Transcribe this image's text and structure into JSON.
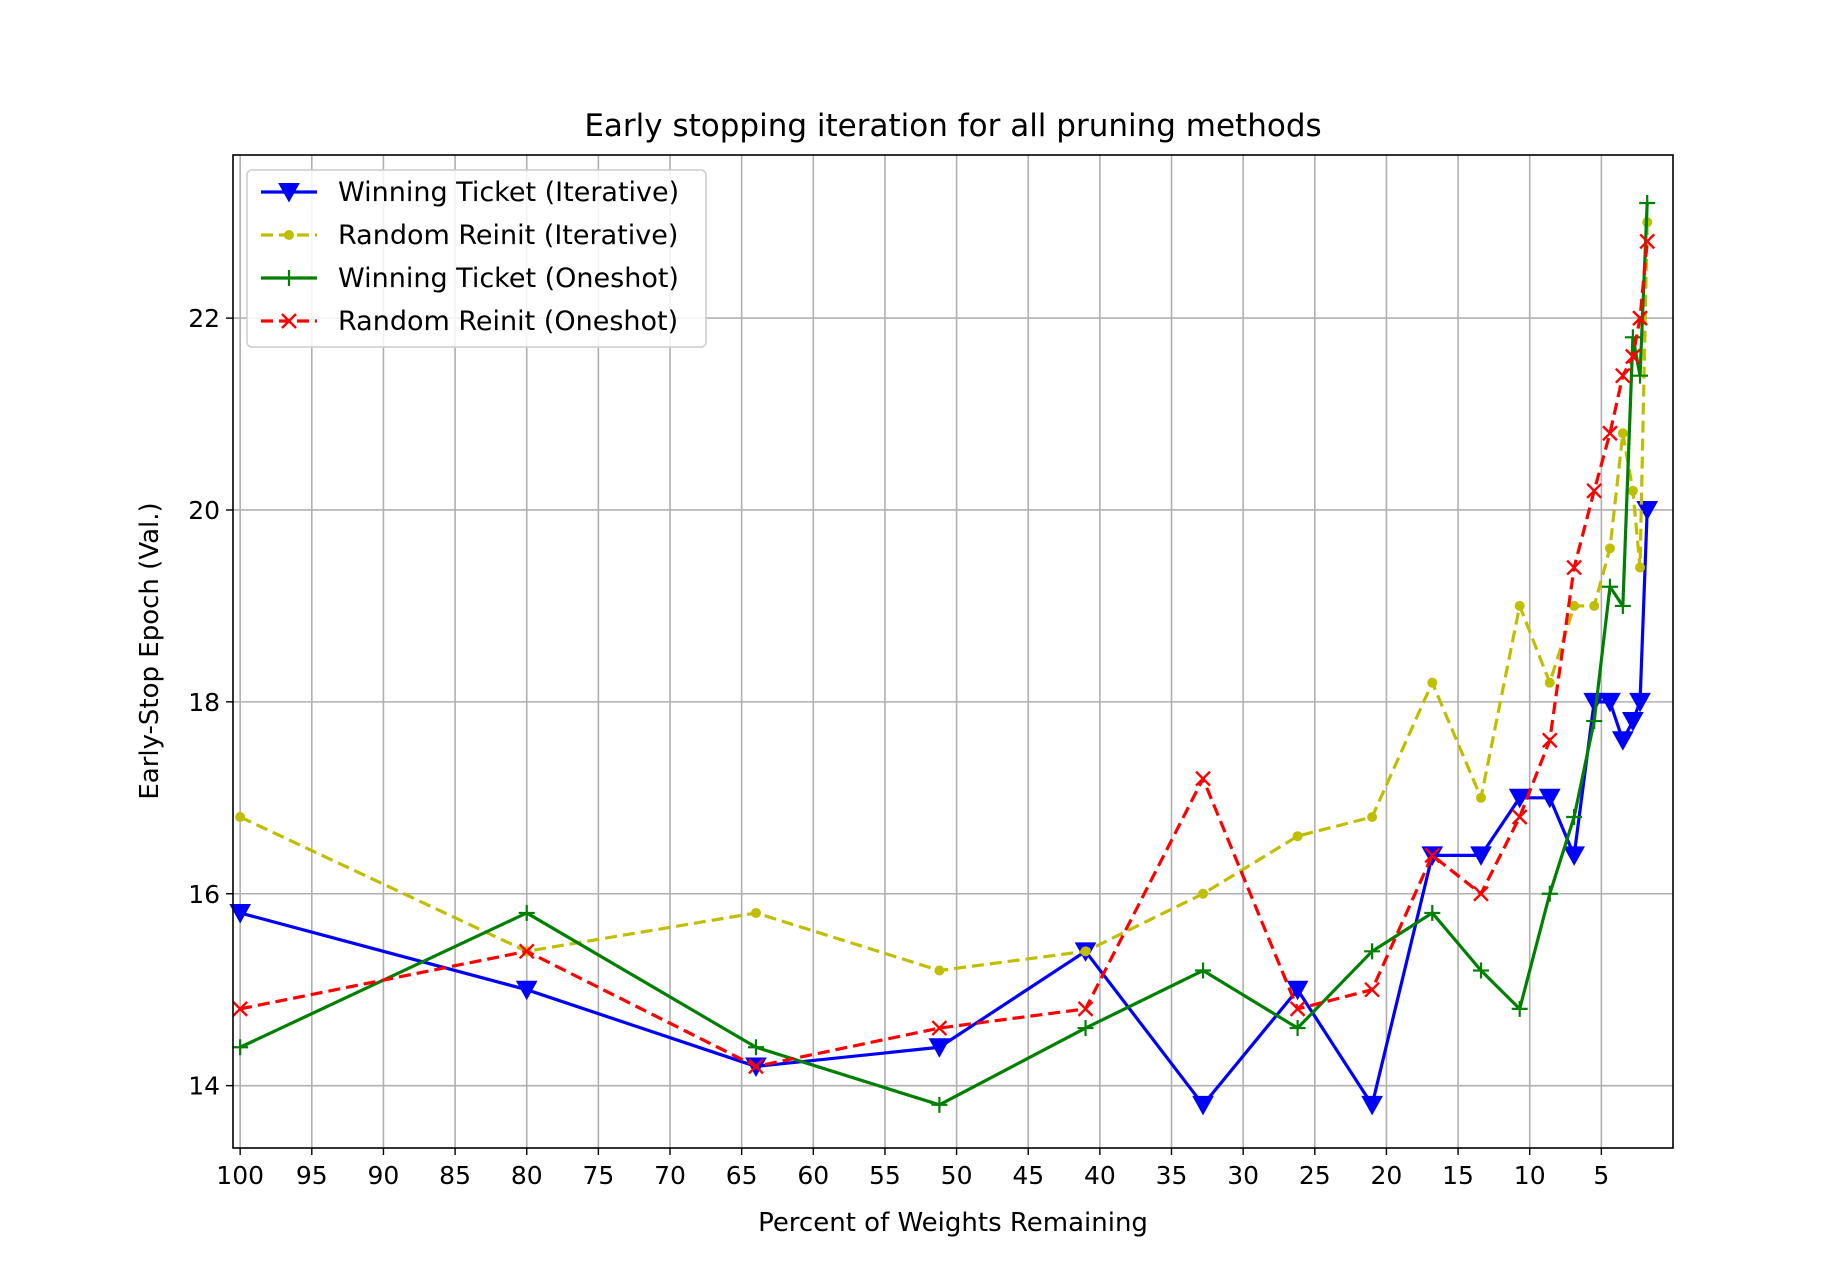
{
  "chart_data": {
    "type": "line",
    "title": "Early stopping iteration for all pruning methods",
    "xlabel": "Percent of Weights Remaining",
    "ylabel": "Early-Stop Epoch (Val.)",
    "x_reversed": true,
    "xlim": [
      100.5,
      0
    ],
    "ylim": [
      13.35,
      23.7
    ],
    "xticks": [
      100,
      95,
      90,
      85,
      80,
      75,
      70,
      65,
      60,
      55,
      50,
      45,
      40,
      35,
      30,
      25,
      20,
      15,
      10,
      5
    ],
    "yticks": [
      14,
      16,
      18,
      20,
      22
    ],
    "grid": true,
    "legend_position": "top-left",
    "x": [
      100,
      80,
      64,
      51.2,
      41,
      32.8,
      26.2,
      21,
      16.8,
      13.4,
      10.7,
      8.6,
      6.9,
      5.5,
      4.4,
      3.5,
      2.8,
      2.3,
      1.8
    ],
    "series": [
      {
        "name": "Winning Ticket (Iterative)",
        "color": "#0000ff",
        "line_style": "solid",
        "marker": "triangle-down",
        "values": [
          15.8,
          15.0,
          14.2,
          14.4,
          15.4,
          13.8,
          15.0,
          13.8,
          16.4,
          16.4,
          17.0,
          17.0,
          16.4,
          18.0,
          18.0,
          17.6,
          17.8,
          18.0,
          20.0
        ]
      },
      {
        "name": "Random Reinit (Iterative)",
        "color": "#bfbf00",
        "line_style": "dashed",
        "marker": "point",
        "values": [
          16.8,
          15.4,
          15.8,
          15.2,
          15.4,
          16.0,
          16.6,
          16.8,
          18.2,
          17.0,
          19.0,
          18.2,
          19.0,
          19.0,
          19.6,
          20.8,
          20.2,
          19.4,
          23.0
        ]
      },
      {
        "name": "Winning Ticket (Oneshot)",
        "color": "#008000",
        "line_style": "solid",
        "marker": "plus",
        "values": [
          14.4,
          15.8,
          14.4,
          13.8,
          14.6,
          15.2,
          14.6,
          15.4,
          15.8,
          15.2,
          14.8,
          16.0,
          16.8,
          17.8,
          19.2,
          19.0,
          21.8,
          21.4,
          23.2
        ]
      },
      {
        "name": "Random Reinit (Oneshot)",
        "color": "#ff0000",
        "line_style": "dashed",
        "marker": "x",
        "values": [
          14.8,
          15.4,
          14.2,
          14.6,
          14.8,
          17.2,
          14.8,
          15.0,
          16.4,
          16.0,
          16.8,
          17.6,
          19.4,
          20.2,
          20.8,
          21.4,
          21.6,
          22.0,
          22.8
        ]
      }
    ]
  }
}
